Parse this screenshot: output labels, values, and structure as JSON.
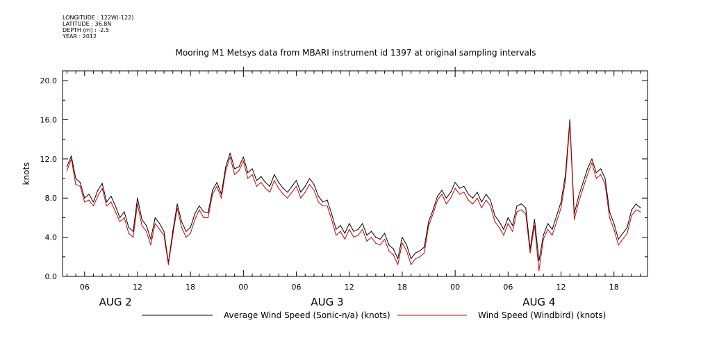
{
  "metadata": {
    "longitude": "LONGITUDE : 122W(-122)",
    "latitude": "LATITUDE : 36.8N",
    "depth": "DEPTH (m) : -2.5",
    "year": "YEAR : 2012"
  },
  "chart_data": {
    "type": "line",
    "title": "Mooring M1 Metsys data from MBARI instrument id 1397 at original sampling intervals",
    "ylabel": "knots",
    "ylim": [
      0,
      21
    ],
    "yticks": [
      0.0,
      4.0,
      8.0,
      12.0,
      16.0,
      20.0
    ],
    "ytick_labels": [
      "0.0",
      "4.0",
      "8.0",
      "12.0",
      "16.0",
      "20.0"
    ],
    "x_unit": "hours since Aug 2 00:00 (2012)",
    "xlim": [
      3.5,
      69.8
    ],
    "xticks": [
      6,
      12,
      18,
      24,
      30,
      36,
      42,
      48,
      54,
      60,
      66
    ],
    "xtick_labels": [
      "06",
      "12",
      "18",
      "00",
      "06",
      "12",
      "18",
      "00",
      "06",
      "12",
      "18"
    ],
    "day_labels": [
      {
        "label": "AUG  2",
        "hour": 9.5
      },
      {
        "label": "AUG  3",
        "hour": 33.5
      },
      {
        "label": "AUG  4",
        "hour": 57.5
      }
    ],
    "series": [
      {
        "name": "Average Wind Speed (Sonic-n/a) (knots)",
        "color": "#000000",
        "x": [
          4.0,
          4.5,
          5.0,
          5.5,
          6.0,
          6.5,
          7.0,
          7.5,
          8.0,
          8.5,
          9.0,
          9.5,
          10.0,
          10.5,
          11.0,
          11.5,
          12.0,
          12.5,
          13.0,
          13.5,
          14.0,
          14.5,
          15.0,
          15.5,
          16.0,
          16.5,
          17.0,
          17.5,
          18.0,
          18.5,
          19.0,
          19.5,
          20.0,
          20.5,
          21.0,
          21.5,
          22.0,
          22.5,
          23.0,
          23.5,
          24.0,
          24.5,
          25.0,
          25.5,
          26.0,
          26.5,
          27.0,
          27.5,
          28.0,
          28.5,
          29.0,
          29.5,
          30.0,
          30.5,
          31.0,
          31.5,
          32.0,
          32.5,
          33.0,
          33.5,
          34.0,
          34.5,
          35.0,
          35.5,
          36.0,
          36.5,
          37.0,
          37.5,
          38.0,
          38.5,
          39.0,
          39.5,
          40.0,
          40.5,
          41.0,
          41.5,
          42.0,
          42.5,
          43.0,
          43.5,
          44.0,
          44.5,
          45.0,
          45.5,
          46.0,
          46.5,
          47.0,
          47.5,
          48.0,
          48.5,
          49.0,
          49.5,
          50.0,
          50.5,
          51.0,
          51.5,
          52.0,
          52.5,
          53.0,
          53.5,
          54.0,
          54.5,
          55.0,
          55.5,
          56.0,
          56.5,
          57.0,
          57.5,
          58.0,
          58.5,
          59.0,
          59.5,
          60.0,
          60.5,
          61.0,
          61.5,
          62.0,
          62.5,
          63.0,
          63.5,
          64.0,
          64.5,
          65.0,
          65.5,
          66.0,
          66.5,
          67.0,
          67.5,
          68.0,
          68.5,
          69.0
        ],
        "values": [
          11.2,
          12.3,
          10.0,
          9.6,
          8.0,
          8.4,
          7.6,
          8.8,
          9.5,
          7.6,
          8.2,
          7.2,
          6.0,
          6.6,
          5.0,
          4.6,
          8.0,
          5.8,
          5.2,
          3.8,
          6.0,
          5.4,
          4.6,
          1.4,
          4.6,
          7.4,
          5.6,
          4.6,
          5.0,
          6.4,
          7.2,
          6.6,
          6.5,
          8.8,
          9.6,
          8.4,
          11.2,
          12.6,
          11.0,
          11.2,
          12.2,
          10.6,
          11.0,
          9.8,
          10.2,
          9.6,
          9.2,
          10.4,
          9.6,
          9.0,
          8.6,
          9.2,
          9.8,
          8.6,
          9.2,
          10.0,
          9.4,
          8.2,
          7.6,
          7.8,
          6.4,
          4.8,
          5.2,
          4.4,
          5.4,
          4.6,
          4.8,
          5.4,
          4.2,
          4.6,
          4.0,
          3.8,
          4.4,
          3.2,
          2.8,
          1.8,
          4.0,
          3.2,
          1.8,
          2.4,
          2.6,
          3.0,
          5.6,
          6.8,
          8.2,
          8.8,
          8.0,
          8.6,
          9.6,
          9.0,
          9.2,
          8.4,
          8.0,
          8.6,
          7.6,
          8.4,
          7.8,
          6.2,
          5.6,
          4.8,
          6.0,
          5.2,
          7.2,
          7.4,
          7.0,
          2.8,
          5.8,
          1.6,
          4.2,
          5.4,
          4.8,
          6.2,
          7.6,
          10.4,
          16.0,
          6.4,
          8.2,
          9.6,
          11.0,
          12.0,
          10.6,
          11.0,
          10.0,
          6.6,
          5.4,
          3.8,
          4.4,
          5.0,
          6.8,
          7.4,
          7.0
        ],
        "raw_note": ""
      },
      {
        "name": "Wind Speed (Windbird) (knots)",
        "color": "#cc0000",
        "x": [
          4.0,
          4.5,
          5.0,
          5.5,
          6.0,
          6.5,
          7.0,
          7.5,
          8.0,
          8.5,
          9.0,
          9.5,
          10.0,
          10.5,
          11.0,
          11.5,
          12.0,
          12.5,
          13.0,
          13.5,
          14.0,
          14.5,
          15.0,
          15.5,
          16.0,
          16.5,
          17.0,
          17.5,
          18.0,
          18.5,
          19.0,
          19.5,
          20.0,
          20.5,
          21.0,
          21.5,
          22.0,
          22.5,
          23.0,
          23.5,
          24.0,
          24.5,
          25.0,
          25.5,
          26.0,
          26.5,
          27.0,
          27.5,
          28.0,
          28.5,
          29.0,
          29.5,
          30.0,
          30.5,
          31.0,
          31.5,
          32.0,
          32.5,
          33.0,
          33.5,
          34.0,
          34.5,
          35.0,
          35.5,
          36.0,
          36.5,
          37.0,
          37.5,
          38.0,
          38.5,
          39.0,
          39.5,
          40.0,
          40.5,
          41.0,
          41.5,
          42.0,
          42.5,
          43.0,
          43.5,
          44.0,
          44.5,
          45.0,
          45.5,
          46.0,
          46.5,
          47.0,
          47.5,
          48.0,
          48.5,
          49.0,
          49.5,
          50.0,
          50.5,
          51.0,
          51.5,
          52.0,
          52.5,
          53.0,
          53.5,
          54.0,
          54.5,
          55.0,
          55.5,
          56.0,
          56.5,
          57.0,
          57.5,
          58.0,
          58.5,
          59.0,
          59.5,
          60.0,
          60.5,
          61.0,
          61.5,
          62.0,
          62.5,
          63.0,
          63.5,
          64.0,
          64.5,
          65.0,
          65.5,
          66.0,
          66.5,
          67.0,
          67.5,
          68.0,
          68.5,
          69.0
        ],
        "values": [
          10.8,
          12.0,
          9.4,
          9.2,
          7.6,
          7.8,
          7.2,
          8.2,
          9.0,
          7.2,
          7.6,
          6.6,
          5.6,
          6.0,
          4.4,
          4.0,
          7.4,
          5.2,
          4.6,
          3.2,
          5.4,
          4.8,
          4.2,
          1.2,
          4.2,
          7.0,
          5.0,
          4.0,
          4.4,
          5.8,
          6.8,
          6.0,
          6.0,
          8.4,
          9.2,
          8.0,
          10.8,
          12.2,
          10.4,
          10.8,
          11.8,
          10.0,
          10.4,
          9.2,
          9.6,
          9.0,
          8.6,
          9.8,
          9.0,
          8.4,
          8.0,
          8.6,
          9.2,
          8.0,
          8.6,
          9.4,
          8.8,
          7.6,
          7.2,
          7.2,
          5.8,
          4.2,
          4.6,
          3.8,
          4.8,
          4.0,
          4.2,
          4.8,
          3.6,
          4.0,
          3.4,
          3.2,
          3.8,
          2.6,
          2.2,
          1.2,
          3.4,
          2.6,
          1.2,
          1.8,
          2.0,
          2.4,
          5.2,
          6.4,
          7.8,
          8.4,
          7.4,
          8.0,
          9.0,
          8.4,
          8.6,
          7.8,
          7.4,
          8.0,
          7.0,
          7.8,
          7.2,
          5.6,
          5.0,
          4.2,
          5.4,
          4.6,
          6.6,
          6.8,
          6.4,
          2.4,
          5.2,
          0.6,
          3.8,
          4.8,
          4.2,
          5.6,
          7.0,
          9.8,
          15.6,
          5.8,
          7.6,
          9.0,
          10.4,
          11.6,
          10.0,
          10.4,
          9.4,
          6.0,
          4.8,
          3.2,
          3.8,
          4.4,
          6.2,
          6.8,
          6.6
        ],
        "raw_note": ""
      }
    ]
  }
}
